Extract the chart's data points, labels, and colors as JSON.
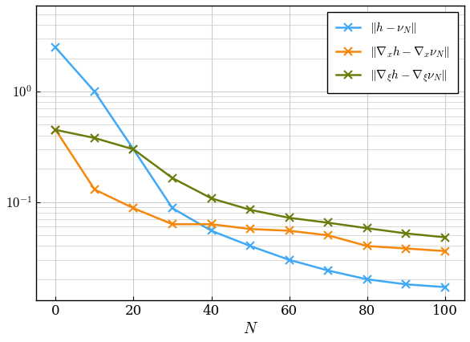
{
  "N": [
    0,
    10,
    20,
    30,
    40,
    50,
    60,
    70,
    80,
    90,
    100
  ],
  "blue": [
    2.5,
    1.0,
    0.3,
    0.088,
    0.055,
    0.04,
    0.03,
    0.024,
    0.02,
    0.018,
    0.017
  ],
  "orange": [
    0.45,
    0.13,
    0.088,
    0.063,
    0.063,
    0.057,
    0.055,
    0.05,
    0.04,
    0.038,
    0.036
  ],
  "green": [
    0.45,
    0.38,
    0.3,
    0.165,
    0.108,
    0.085,
    0.072,
    0.065,
    0.058,
    0.052,
    0.048
  ],
  "blue_color": "#3fa9f5",
  "orange_color": "#f5870a",
  "green_color": "#6a7d0c",
  "xlabel": "$N$",
  "legend1": "$\\|h - \\nu_N\\|$",
  "legend2": "$\\|\\nabla_x h - \\nabla_x \\nu_N\\|$",
  "legend3": "$\\|\\nabla_\\xi h - \\nabla_\\xi \\nu_N\\|$",
  "ylim_bottom": 0.013,
  "ylim_top": 6.0,
  "xlim_left": -5,
  "xlim_right": 105,
  "xticks": [
    0,
    20,
    40,
    60,
    80,
    100
  ],
  "yticks": [
    0.1,
    1.0
  ],
  "figsize": [
    5.86,
    4.26
  ],
  "dpi": 100
}
